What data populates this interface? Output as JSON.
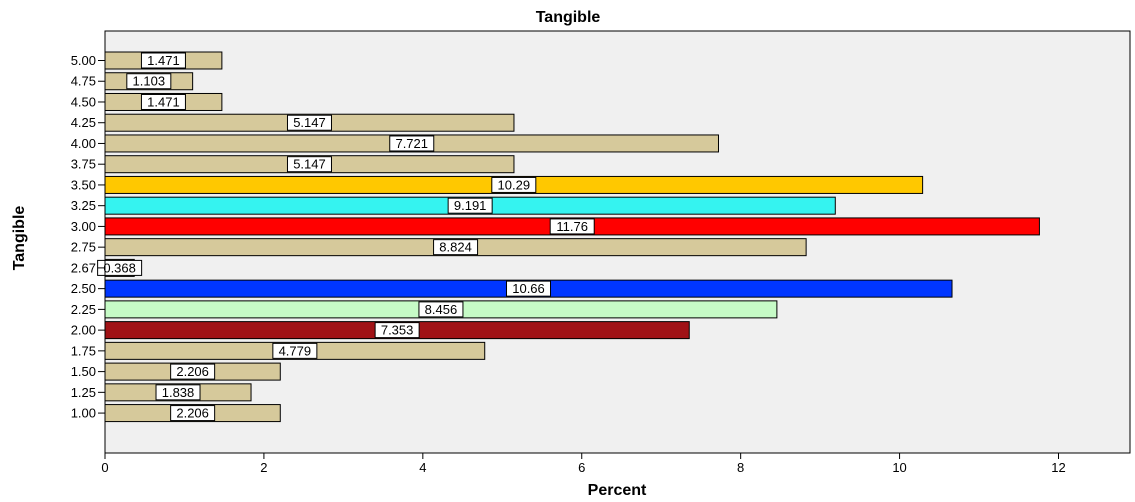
{
  "chart_data": {
    "type": "bar",
    "orientation": "horizontal",
    "title": "Tangible",
    "xlabel": "Percent",
    "ylabel": "Tangible",
    "xlim": [
      0,
      12.9
    ],
    "xticks": [
      "0",
      "2",
      "4",
      "6",
      "8",
      "10",
      "12"
    ],
    "grid": false,
    "categories": [
      "5.00",
      "4.75",
      "4.50",
      "4.25",
      "4.00",
      "3.75",
      "3.50",
      "3.25",
      "3.00",
      "2.75",
      "2.67",
      "2.50",
      "2.25",
      "2.00",
      "1.75",
      "1.50",
      "1.25",
      "1.00"
    ],
    "values": [
      1.471,
      1.103,
      1.471,
      5.147,
      7.721,
      5.147,
      10.29,
      9.191,
      11.76,
      8.824,
      0.368,
      10.66,
      8.456,
      7.353,
      4.779,
      2.206,
      1.838,
      2.206
    ],
    "data_labels": [
      "1.471",
      "1.103",
      "1.471",
      "5.147",
      "7.721",
      "5.147",
      "10.29",
      "9.191",
      "11.76",
      "8.824",
      "0.368",
      "10.66",
      "8.456",
      "7.353",
      "4.779",
      "2.206",
      "1.838",
      "2.206"
    ],
    "colors": [
      "#d6c99b",
      "#d6c99b",
      "#d6c99b",
      "#d6c99b",
      "#d6c99b",
      "#d6c99b",
      "#ffc800",
      "#35f3f0",
      "#ff0000",
      "#d6c99b",
      "#d6c99b",
      "#0036ff",
      "#c6fbc6",
      "#a01216",
      "#d6c99b",
      "#d6c99b",
      "#d6c99b",
      "#d6c99b"
    ],
    "plot_background": "#f0f0f0",
    "bar_edge_color": "#000000"
  }
}
